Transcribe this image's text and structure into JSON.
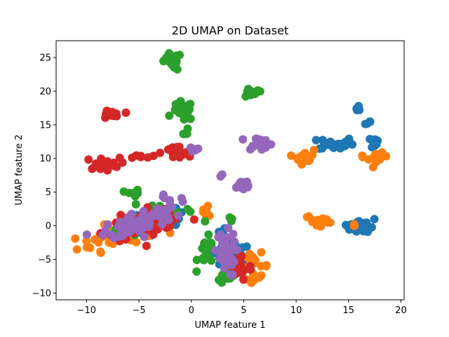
{
  "chart_data": {
    "type": "scatter",
    "title": "2D UMAP on Dataset",
    "xlabel": "UMAP feature 1",
    "ylabel": "UMAP feature 2",
    "xlim": [
      -12.9,
      20.3
    ],
    "ylim": [
      -11.0,
      27.5
    ],
    "xticks": [
      -10,
      -5,
      0,
      5,
      10,
      15,
      20
    ],
    "yticks": [
      -10,
      -5,
      0,
      5,
      10,
      15,
      20,
      25
    ],
    "grid": false,
    "legend": "none",
    "colors": {
      "blue": "#1f77b4",
      "orange": "#ff7f0e",
      "green": "#2ca02c",
      "red": "#d62728",
      "purple": "#9467bd"
    },
    "series": [
      {
        "color": "blue",
        "clusters": [
          {
            "x": -4.0,
            "y": 0.5,
            "sx": 3.5,
            "sy": 1.3,
            "angle": 22,
            "n": 70
          },
          {
            "x": 3.8,
            "y": -4.5,
            "sx": 1.8,
            "sy": 3.0,
            "angle": 0,
            "n": 35
          },
          {
            "x": 13.8,
            "y": 12.2,
            "sx": 1.5,
            "sy": 0.9,
            "angle": 0,
            "n": 22
          },
          {
            "x": 17.2,
            "y": 12.4,
            "sx": 0.8,
            "sy": 0.8,
            "angle": 0,
            "n": 12
          },
          {
            "x": 16.0,
            "y": 17.5,
            "sx": 0.4,
            "sy": 0.5,
            "angle": 0,
            "n": 5
          },
          {
            "x": 16.8,
            "y": 15.4,
            "sx": 0.4,
            "sy": 0.4,
            "angle": 0,
            "n": 4
          },
          {
            "x": 16.5,
            "y": 0.0,
            "sx": 1.2,
            "sy": 1.2,
            "angle": 0,
            "n": 20
          },
          {
            "x": 14.8,
            "y": 0.2,
            "sx": 0.5,
            "sy": 0.3,
            "angle": 0,
            "n": 4
          }
        ]
      },
      {
        "color": "orange",
        "clusters": [
          {
            "x": -7.5,
            "y": -1.5,
            "sx": 3.5,
            "sy": 1.5,
            "angle": 22,
            "n": 55
          },
          {
            "x": 1.5,
            "y": 2.0,
            "sx": 0.8,
            "sy": 1.0,
            "angle": 0,
            "n": 8
          },
          {
            "x": 10.8,
            "y": 10.3,
            "sx": 0.8,
            "sy": 1.0,
            "angle": 0,
            "n": 18
          },
          {
            "x": 17.8,
            "y": 10.0,
            "sx": 0.8,
            "sy": 0.7,
            "angle": 0,
            "n": 10
          },
          {
            "x": 12.3,
            "y": 0.6,
            "sx": 1.3,
            "sy": 1.0,
            "angle": 0,
            "n": 20
          },
          {
            "x": 6.0,
            "y": -6.0,
            "sx": 1.3,
            "sy": 1.7,
            "angle": 0,
            "n": 20
          },
          {
            "x": 15.5,
            "y": 0.0,
            "sx": 0.3,
            "sy": 0.3,
            "angle": 0,
            "n": 3
          },
          {
            "x": 16.3,
            "y": 10.5,
            "sx": 0.3,
            "sy": 0.3,
            "angle": 0,
            "n": 2
          }
        ]
      },
      {
        "color": "green",
        "clusters": [
          {
            "x": -3.5,
            "y": 1.0,
            "sx": 3.5,
            "sy": 1.5,
            "angle": 22,
            "n": 60
          },
          {
            "x": -2.0,
            "y": 24.7,
            "sx": 1.0,
            "sy": 0.8,
            "angle": 0,
            "n": 18
          },
          {
            "x": -1.5,
            "y": 23.3,
            "sx": 0.3,
            "sy": 0.3,
            "angle": 0,
            "n": 2
          },
          {
            "x": 5.7,
            "y": 19.7,
            "sx": 1.0,
            "sy": 0.6,
            "angle": 0,
            "n": 14
          },
          {
            "x": -0.8,
            "y": 17.0,
            "sx": 0.9,
            "sy": 1.3,
            "angle": 0,
            "n": 22
          },
          {
            "x": -0.6,
            "y": 13.8,
            "sx": 0.3,
            "sy": 0.8,
            "angle": 0,
            "n": 5
          },
          {
            "x": 1.5,
            "y": -4.0,
            "sx": 0.8,
            "sy": 2.0,
            "angle": 0,
            "n": 22
          },
          {
            "x": 3.5,
            "y": -7.5,
            "sx": 1.0,
            "sy": 1.0,
            "angle": 0,
            "n": 12
          },
          {
            "x": -5.5,
            "y": 4.8,
            "sx": 0.6,
            "sy": 0.5,
            "angle": 0,
            "n": 6
          },
          {
            "x": 4.0,
            "y": 1.0,
            "sx": 0.4,
            "sy": 0.4,
            "angle": 0,
            "n": 3
          }
        ]
      },
      {
        "color": "red",
        "clusters": [
          {
            "x": -4.5,
            "y": 0.5,
            "sx": 3.5,
            "sy": 1.5,
            "angle": 22,
            "n": 65
          },
          {
            "x": -7.8,
            "y": 16.5,
            "sx": 0.9,
            "sy": 0.7,
            "angle": 0,
            "n": 14
          },
          {
            "x": -8.5,
            "y": 9.2,
            "sx": 1.5,
            "sy": 0.8,
            "angle": 0,
            "n": 24
          },
          {
            "x": -1.5,
            "y": 10.8,
            "sx": 1.3,
            "sy": 1.0,
            "angle": 0,
            "n": 22
          },
          {
            "x": -4.5,
            "y": 10.2,
            "sx": 1.0,
            "sy": 0.4,
            "angle": 0,
            "n": 6
          },
          {
            "x": 4.5,
            "y": -6.0,
            "sx": 1.2,
            "sy": 2.0,
            "angle": 0,
            "n": 28
          }
        ]
      },
      {
        "color": "purple",
        "clusters": [
          {
            "x": -5.0,
            "y": 0.5,
            "sx": 3.3,
            "sy": 1.4,
            "angle": 22,
            "n": 75
          },
          {
            "x": -2.0,
            "y": 3.5,
            "sx": 0.9,
            "sy": 1.4,
            "angle": 0,
            "n": 12
          },
          {
            "x": 6.5,
            "y": 12.3,
            "sx": 1.1,
            "sy": 0.9,
            "angle": 0,
            "n": 18
          },
          {
            "x": 4.8,
            "y": 6.0,
            "sx": 0.9,
            "sy": 0.9,
            "angle": 0,
            "n": 15
          },
          {
            "x": 3.2,
            "y": -4.2,
            "sx": 0.9,
            "sy": 3.0,
            "angle": 0,
            "n": 40
          },
          {
            "x": 0.5,
            "y": 11.3,
            "sx": 0.6,
            "sy": 0.3,
            "angle": 0,
            "n": 5
          },
          {
            "x": 2.7,
            "y": 7.5,
            "sx": 0.2,
            "sy": 0.2,
            "angle": 0,
            "n": 2
          }
        ]
      }
    ]
  }
}
